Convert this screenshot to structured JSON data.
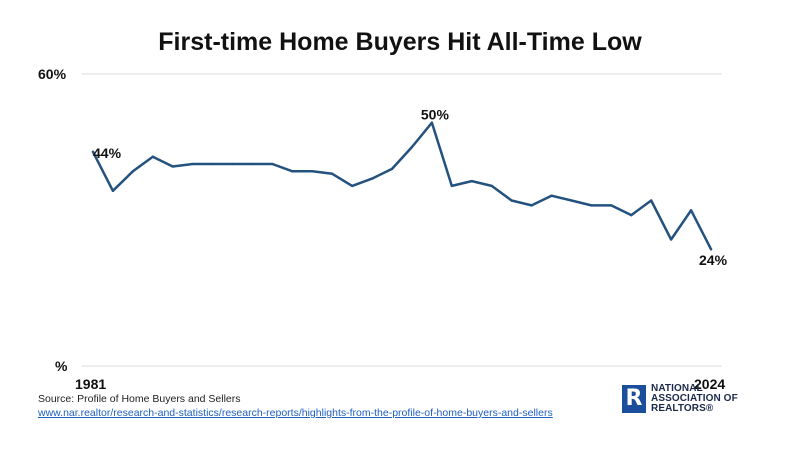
{
  "chart_data": {
    "type": "line",
    "title": "First-time Home Buyers Hit All-Time Low",
    "series": [
      {
        "values": [
          44,
          36,
          40,
          43,
          41,
          41.5,
          41.5,
          41.5,
          41.5,
          41.5,
          40,
          40,
          39.5,
          37,
          38.5,
          40.5,
          45,
          50,
          37,
          38,
          37,
          34,
          33,
          35,
          34,
          33,
          33,
          31,
          34,
          26,
          32,
          24
        ]
      }
    ],
    "ylim": [
      0,
      60
    ],
    "y_ticks": [
      "%",
      "60%"
    ],
    "x_ticks": [
      "1981",
      "2024"
    ],
    "data_labels": [
      {
        "index": 0,
        "text": "44%"
      },
      {
        "index": 17,
        "text": "50%"
      },
      {
        "index": 31,
        "text": "24%"
      }
    ],
    "line_color": "#24527f",
    "grid": true,
    "legend": "none"
  },
  "source": {
    "text": "Source: Profile of Home Buyers and Sellers",
    "link": "www.nar.realtor/research-and-statistics/research-reports/highlights-from-the-profile-of-home-buyers-and-sellers"
  },
  "logo": {
    "mark": "R",
    "line1": "NATIONAL",
    "line2": "ASSOCIATION OF",
    "line3": "REALTORS®"
  }
}
